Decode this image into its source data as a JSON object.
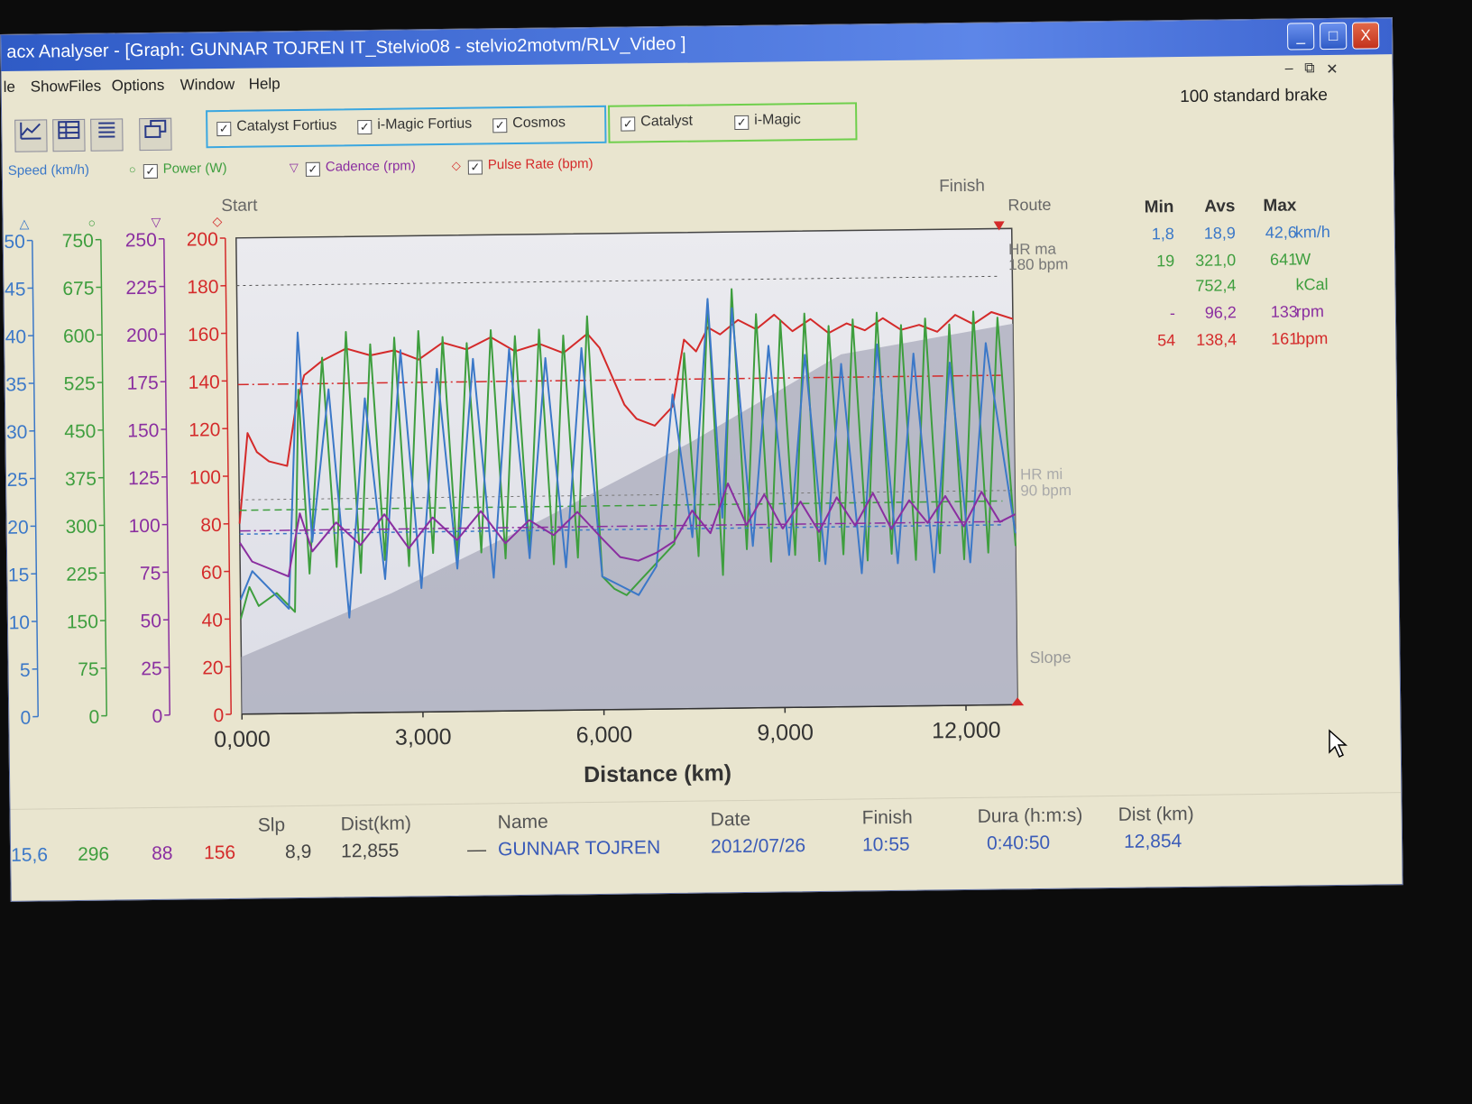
{
  "window": {
    "title": "acx Analyser - [Graph:  GUNNAR TOJREN  IT_Stelvio08 - stelvio2motvm/RLV_Video ]",
    "buttons": [
      "_",
      "□",
      "X"
    ],
    "mdi_buttons": [
      "–",
      "⧉",
      "✕"
    ]
  },
  "menu": [
    "le",
    "ShowFiles",
    "Options",
    "Window",
    "Help"
  ],
  "brake_label": "100 standard brake",
  "toolbar_icons": [
    "graph-icon",
    "table-icon",
    "list-icon",
    "window-icon"
  ],
  "trainer_filters": {
    "blue_group": [
      "Catalyst Fortius",
      "i-Magic Fortius",
      "Cosmos"
    ],
    "green_group": [
      "Catalyst",
      "i-Magic"
    ]
  },
  "series_legend": [
    {
      "label": "Speed (km/h)",
      "marker": "△",
      "color": "#3b78c8",
      "checked": false
    },
    {
      "label": "Power (W)",
      "marker": "○",
      "color": "#3e9e3e",
      "checked": true
    },
    {
      "label": "Cadence (rpm)",
      "marker": "▽",
      "color": "#8a2ea0",
      "checked": true
    },
    {
      "label": "Pulse Rate (bpm)",
      "marker": "◇",
      "color": "#d42a2a",
      "checked": true
    }
  ],
  "chart_data": {
    "type": "line",
    "xlabel": "Distance (km)",
    "xlim": [
      0,
      12.855
    ],
    "xticks": [
      "0,000",
      "3,000",
      "6,000",
      "9,000",
      "12,000"
    ],
    "start_label": "Start",
    "finish_label": "Finish",
    "route_label": "Route",
    "slope_label": "Slope",
    "hr_max_label": [
      "HR ma",
      "180 bpm"
    ],
    "hr_min_label": [
      "HR mi",
      "90 bpm"
    ],
    "hr_max_line": 180,
    "hr_min_line": 90,
    "grid": false,
    "axes": [
      {
        "id": "speed",
        "marker": "△",
        "color": "#3b78c8",
        "range": [
          0,
          50
        ],
        "ticks": [
          "0",
          "5",
          "10",
          "15",
          "20",
          "25",
          "30",
          "35",
          "40",
          "45",
          "50"
        ]
      },
      {
        "id": "power",
        "marker": "○",
        "color": "#3e9e3e",
        "range": [
          0,
          750
        ],
        "ticks": [
          "0",
          "75",
          "150",
          "225",
          "300",
          "375",
          "450",
          "525",
          "600",
          "675",
          "750"
        ]
      },
      {
        "id": "cadence",
        "marker": "▽",
        "color": "#8a2ea0",
        "range": [
          0,
          250
        ],
        "ticks": [
          "0",
          "25",
          "50",
          "75",
          "100",
          "125",
          "150",
          "175",
          "200",
          "225",
          "250"
        ]
      },
      {
        "id": "pulse",
        "marker": "◇",
        "color": "#d42a2a",
        "range": [
          0,
          200
        ],
        "ticks": [
          "0",
          "20",
          "40",
          "60",
          "80",
          "100",
          "120",
          "140",
          "160",
          "180",
          "200"
        ]
      }
    ],
    "series": [
      {
        "name": "Pulse Rate (bpm)",
        "axis": "pulse",
        "color": "#d42a2a",
        "avg": 138.4,
        "x": [
          0.0,
          0.15,
          0.3,
          0.5,
          0.8,
          0.95,
          1.1,
          1.4,
          1.8,
          2.2,
          2.6,
          3.0,
          3.4,
          3.8,
          4.2,
          4.6,
          5.0,
          5.4,
          5.8,
          6.0,
          6.2,
          6.4,
          6.6,
          6.9,
          7.2,
          7.4,
          7.6,
          7.8,
          8.0,
          8.3,
          8.6,
          8.9,
          9.2,
          9.5,
          9.8,
          10.1,
          10.4,
          10.7,
          11.0,
          11.3,
          11.6,
          11.9,
          12.2,
          12.5,
          12.855
        ],
        "y": [
          80,
          118,
          110,
          106,
          104,
          128,
          142,
          148,
          153,
          150,
          152,
          148,
          155,
          152,
          157,
          151,
          154,
          150,
          158,
          152,
          140,
          128,
          122,
          119,
          127,
          155,
          150,
          160,
          157,
          163,
          159,
          165,
          158,
          163,
          157,
          161,
          158,
          163,
          158,
          160,
          157,
          164,
          160,
          165,
          162
        ]
      },
      {
        "name": "Power (W)",
        "axis": "power",
        "color": "#3e9e3e",
        "avg": 321.0,
        "x": [
          0.0,
          0.15,
          0.3,
          0.6,
          0.9,
          1.0,
          1.15,
          1.4,
          1.6,
          1.8,
          2.0,
          2.2,
          2.4,
          2.6,
          2.8,
          3.0,
          3.2,
          3.4,
          3.6,
          3.8,
          4.0,
          4.2,
          4.4,
          4.6,
          4.8,
          5.0,
          5.2,
          5.4,
          5.6,
          5.8,
          6.0,
          6.2,
          6.4,
          6.6,
          6.9,
          7.2,
          7.4,
          7.6,
          7.8,
          8.0,
          8.2,
          8.4,
          8.6,
          8.8,
          9.0,
          9.2,
          9.4,
          9.6,
          9.8,
          10.0,
          10.2,
          10.4,
          10.6,
          10.8,
          11.0,
          11.2,
          11.4,
          11.6,
          11.8,
          12.0,
          12.2,
          12.4,
          12.6,
          12.855
        ],
        "y": [
          150,
          200,
          170,
          190,
          160,
          510,
          220,
          560,
          230,
          600,
          220,
          580,
          240,
          590,
          230,
          600,
          250,
          590,
          240,
          580,
          250,
          600,
          240,
          590,
          250,
          600,
          230,
          590,
          240,
          620,
          210,
          190,
          180,
          200,
          230,
          260,
          560,
          240,
          640,
          210,
          660,
          250,
          620,
          230,
          610,
          240,
          620,
          230,
          600,
          240,
          610,
          230,
          620,
          240,
          600,
          230,
          610,
          240,
          600,
          230,
          620,
          240,
          610,
          250
        ]
      },
      {
        "name": "Speed (km/h)",
        "axis": "speed",
        "color": "#3b78c8",
        "avg": 18.9,
        "x": [
          0.0,
          0.2,
          0.5,
          0.8,
          1.0,
          1.2,
          1.5,
          1.8,
          2.1,
          2.4,
          2.7,
          3.0,
          3.3,
          3.6,
          3.9,
          4.2,
          4.5,
          4.8,
          5.1,
          5.4,
          5.7,
          6.0,
          6.3,
          6.6,
          6.9,
          7.2,
          7.5,
          7.8,
          8.0,
          8.2,
          8.5,
          8.8,
          9.1,
          9.4,
          9.7,
          10.0,
          10.3,
          10.6,
          10.9,
          11.2,
          11.5,
          11.8,
          12.1,
          12.4,
          12.855
        ],
        "y": [
          12,
          15,
          13,
          11,
          40,
          18,
          34,
          10,
          33,
          14,
          38,
          13,
          36,
          15,
          37,
          14,
          38,
          16,
          37,
          15,
          38,
          14,
          13,
          12,
          15,
          33,
          18,
          43,
          20,
          42,
          17,
          38,
          16,
          37,
          15,
          36,
          14,
          38,
          15,
          37,
          14,
          36,
          15,
          38,
          18
        ]
      },
      {
        "name": "Cadence (rpm)",
        "axis": "cadence",
        "color": "#8a2ea0",
        "avg": 96.2,
        "x": [
          0.0,
          0.2,
          0.5,
          0.8,
          1.0,
          1.2,
          1.6,
          2.0,
          2.4,
          2.8,
          3.2,
          3.6,
          4.0,
          4.4,
          4.8,
          5.2,
          5.6,
          6.0,
          6.3,
          6.6,
          6.9,
          7.2,
          7.5,
          7.8,
          8.1,
          8.4,
          8.7,
          9.0,
          9.3,
          9.6,
          9.9,
          10.2,
          10.5,
          10.8,
          11.1,
          11.4,
          11.7,
          12.0,
          12.3,
          12.6,
          12.855
        ],
        "y": [
          90,
          80,
          76,
          72,
          105,
          85,
          100,
          88,
          104,
          86,
          102,
          90,
          105,
          88,
          100,
          92,
          104,
          90,
          80,
          78,
          82,
          88,
          104,
          92,
          118,
          96,
          112,
          94,
          108,
          92,
          110,
          95,
          112,
          93,
          108,
          96,
          110,
          94,
          112,
          96,
          100
        ]
      }
    ],
    "slope": {
      "x": [
        0.0,
        2.5,
        5.0,
        7.5,
        10.0,
        12.855
      ],
      "y_rel": [
        0.12,
        0.25,
        0.4,
        0.56,
        0.74,
        0.8
      ]
    }
  },
  "stats": {
    "headers": [
      "Min",
      "Avs",
      "Max"
    ],
    "rows": [
      {
        "min": "1,8",
        "avg": "18,9",
        "max": "42,6",
        "unit": "km/h",
        "color": "#3b78c8"
      },
      {
        "min": "19",
        "avg": "321,0",
        "max": "641",
        "unit": "W",
        "color": "#3e9e3e"
      },
      {
        "min": "",
        "avg": "752,4",
        "max": "",
        "unit": "kCal",
        "color": "#3e9e3e"
      },
      {
        "min": "-",
        "avg": "96,2",
        "max": "133",
        "unit": "rpm",
        "color": "#8a2ea0"
      },
      {
        "min": "54",
        "avg": "138,4",
        "max": "161",
        "unit": "bpm",
        "color": "#d42a2a"
      }
    ]
  },
  "bottom_table": {
    "headers": {
      "slp": "Slp",
      "dist": "Dist(km)",
      "name": "Name",
      "date": "Date",
      "finish": "Finish",
      "duration": "Dura (h:m:s)",
      "dist2": "Dist (km)"
    },
    "cursor": {
      "speed": "15,6",
      "power": "296",
      "cadence": "88",
      "pulse": "156",
      "slp": "8,9",
      "dist": "12,855"
    },
    "row": {
      "dash": "—",
      "name": "GUNNAR TOJREN",
      "date": "2012/07/26",
      "finish": "10:55",
      "duration": "0:40:50",
      "dist": "12,854"
    }
  }
}
